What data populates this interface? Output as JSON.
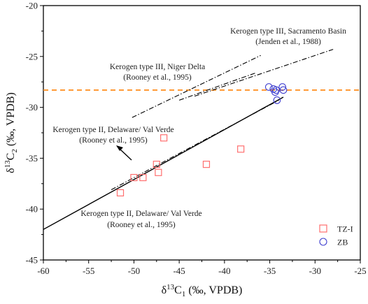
{
  "chart_data": {
    "type": "scatter",
    "xlabel_parts": {
      "prefix": "δ",
      "sup": "13",
      "main": "C",
      "sub": "1",
      "suffix": " (‰, VPDB)"
    },
    "ylabel_parts": {
      "prefix": "δ",
      "sup": "13",
      "main": "C",
      "sub": "2",
      "suffix": " (‰, VPDB)"
    },
    "xlim": [
      -60,
      -25
    ],
    "ylim": [
      -45,
      -20
    ],
    "xticks": [
      -60,
      -55,
      -50,
      -45,
      -40,
      -35,
      -30,
      -25
    ],
    "yticks": [
      -45,
      -40,
      -35,
      -30,
      -25,
      -20
    ],
    "xtick_labels": [
      "-60",
      "-55",
      "-50",
      "-45",
      "-40",
      "-35",
      "-30",
      "-25"
    ],
    "ytick_labels": [
      "-45",
      "-40",
      "-35",
      "-30",
      "-25",
      "-20"
    ],
    "grid": false,
    "legend": "bottom-right",
    "series": [
      {
        "name": "TZ-I",
        "marker": "square",
        "color": "#ff6f6f",
        "points": [
          [
            -51.5,
            -38.4
          ],
          [
            -50.0,
            -36.9
          ],
          [
            -49.0,
            -36.9
          ],
          [
            -47.5,
            -35.6
          ],
          [
            -47.3,
            -36.4
          ],
          [
            -46.7,
            -33.0
          ],
          [
            -42.0,
            -35.6
          ],
          [
            -38.2,
            -34.1
          ]
        ]
      },
      {
        "name": "ZB",
        "marker": "circle",
        "color": "#3f3fcf",
        "points": [
          [
            -35.1,
            -28.0
          ],
          [
            -34.6,
            -28.2
          ],
          [
            -34.4,
            -28.5
          ],
          [
            -34.2,
            -29.3
          ],
          [
            -33.6,
            -28.0
          ],
          [
            -33.5,
            -28.3
          ],
          [
            -34.3,
            -28.3
          ]
        ]
      }
    ],
    "reference_lines": [
      {
        "id": "delaware-solid",
        "style": "solid",
        "color": "#000000",
        "x1": -60,
        "y1": -42.0,
        "x2": -33.5,
        "y2": -29.0
      },
      {
        "id": "delaware-dashdot",
        "style": "dashdot",
        "color": "#000000",
        "x1": -52.5,
        "y1": -38.1,
        "x2": -34.0,
        "y2": -29.3
      },
      {
        "id": "niger-delta-1",
        "style": "dashdot",
        "color": "#000000",
        "x1": -50.2,
        "y1": -31.0,
        "x2": -36.0,
        "y2": -24.9
      },
      {
        "id": "niger-delta-2",
        "style": "dashdot",
        "color": "#000000",
        "x1": -45.0,
        "y1": -29.3,
        "x2": -36.5,
        "y2": -26.6
      },
      {
        "id": "sacramento",
        "style": "dashdot",
        "color": "#000000",
        "x1": -43.3,
        "y1": -28.9,
        "x2": -28.0,
        "y2": -24.3
      }
    ],
    "horizontal_line": {
      "y": -28.3,
      "style": "dashed",
      "color": "#ff8c1a"
    },
    "annotations": [
      {
        "id": "sacramento",
        "lines": [
          "Kerogen type III, Sacramento Basin",
          "(Jenden et al., 1988)"
        ]
      },
      {
        "id": "niger-delta",
        "lines": [
          "Kerogen type III, Niger Delta",
          "(Rooney et al., 1995)"
        ]
      },
      {
        "id": "delaware-upper",
        "lines": [
          "Kerogen type II, Delaware/ Val Verde",
          "(Rooney et al., 1995)"
        ]
      },
      {
        "id": "delaware-lower",
        "lines": [
          "Kerogen type II, Delaware/ Val Verde",
          "(Rooney et al., 1995)"
        ]
      }
    ]
  }
}
